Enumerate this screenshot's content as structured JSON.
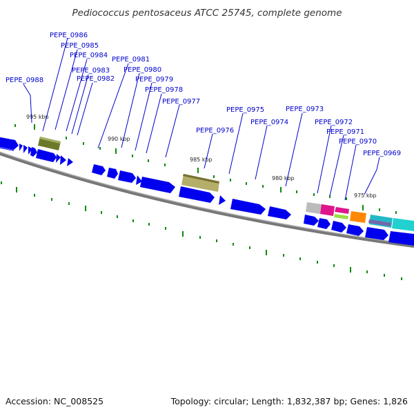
{
  "title": "Pediococcus pentosaceus ATCC 25745, complete genome",
  "footer": {
    "accession": "Accession: NC_008525",
    "summary": "Topology: circular; Length: 1,832,387 bp; Genes: 1,826"
  },
  "scale_labels": [
    "995 kbp",
    "990 kbp",
    "985 kbp",
    "980 kbp",
    "975 kbp"
  ],
  "gene_labels": [
    "PEPE_0988",
    "PEPE_0986",
    "PEPE_0985",
    "PEPE_0984",
    "PEPE_0983",
    "PEPE_0982",
    "PEPE_0981",
    "PEPE_0980",
    "PEPE_0979",
    "PEPE_0978",
    "PEPE_0977",
    "PEPE_0976",
    "PEPE_0975",
    "PEPE_0974",
    "PEPE_0973",
    "PEPE_0972",
    "PEPE_0971",
    "PEPE_0970",
    "PEPE_0969"
  ],
  "colors": {
    "cds": "#0000ee",
    "backbone": "#888888",
    "ticks": "#0a8a0a",
    "label": "#0000cc",
    "feature_olive": "#6b7a2a",
    "feature_khaki": "#b5ae6a",
    "feature_grey": "#bbbbbb",
    "feature_magenta": "#e0148c",
    "feature_green": "#99dd44",
    "feature_orange": "#ff8800",
    "feature_teal": "#22b8c8",
    "feature_purple": "#7766aa",
    "feature_cyan": "#22d0d0"
  }
}
